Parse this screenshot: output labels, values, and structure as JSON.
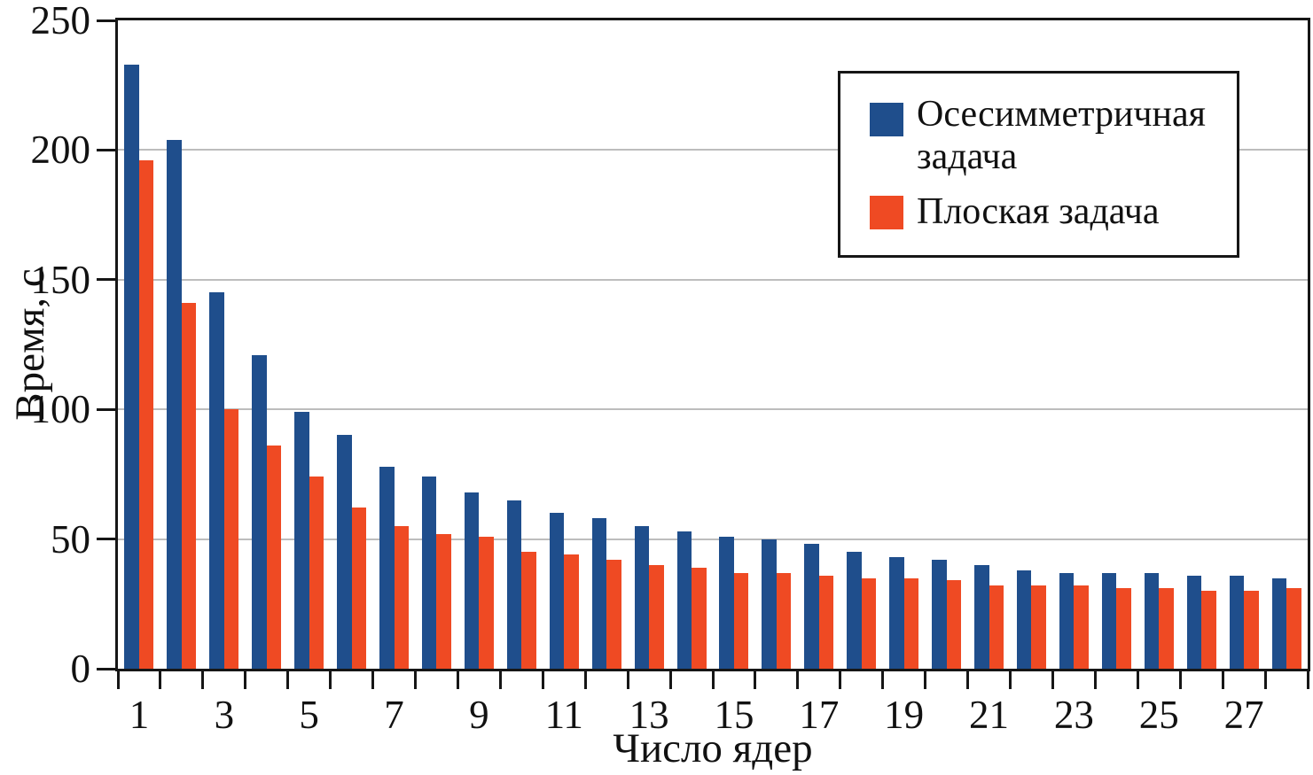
{
  "chart_data": {
    "type": "bar",
    "title": "",
    "xlabel": "Число ядер",
    "ylabel": "Время, с",
    "x": [
      1,
      2,
      3,
      4,
      5,
      6,
      7,
      8,
      9,
      10,
      11,
      12,
      13,
      14,
      15,
      16,
      17,
      18,
      19,
      20,
      21,
      22,
      23,
      24,
      25,
      26,
      27,
      28
    ],
    "xtick_labels": [
      1,
      3,
      5,
      7,
      9,
      11,
      13,
      15,
      17,
      19,
      21,
      23,
      25,
      27
    ],
    "yticks": [
      0,
      50,
      100,
      150,
      200,
      250
    ],
    "ylim": [
      0,
      250
    ],
    "grid": "horizontal-gray",
    "legend_position": "top-right",
    "series": [
      {
        "name": "Осесимметричная задача",
        "color": "#1F4E8C",
        "values": [
          233,
          204,
          145,
          121,
          99,
          90,
          78,
          74,
          68,
          65,
          60,
          58,
          55,
          53,
          51,
          50,
          48,
          45,
          43,
          42,
          40,
          38,
          37,
          37,
          37,
          36,
          36,
          35
        ]
      },
      {
        "name": "Плоская задача",
        "color": "#EF4A23",
        "values": [
          196,
          141,
          100,
          86,
          74,
          62,
          55,
          52,
          51,
          45,
          44,
          42,
          40,
          39,
          37,
          37,
          36,
          35,
          35,
          34,
          32,
          32,
          32,
          31,
          31,
          30,
          30,
          31
        ]
      }
    ]
  },
  "colors": {
    "axis": "#161616",
    "gridline": "#bdbdbd",
    "background": "#ffffff"
  }
}
